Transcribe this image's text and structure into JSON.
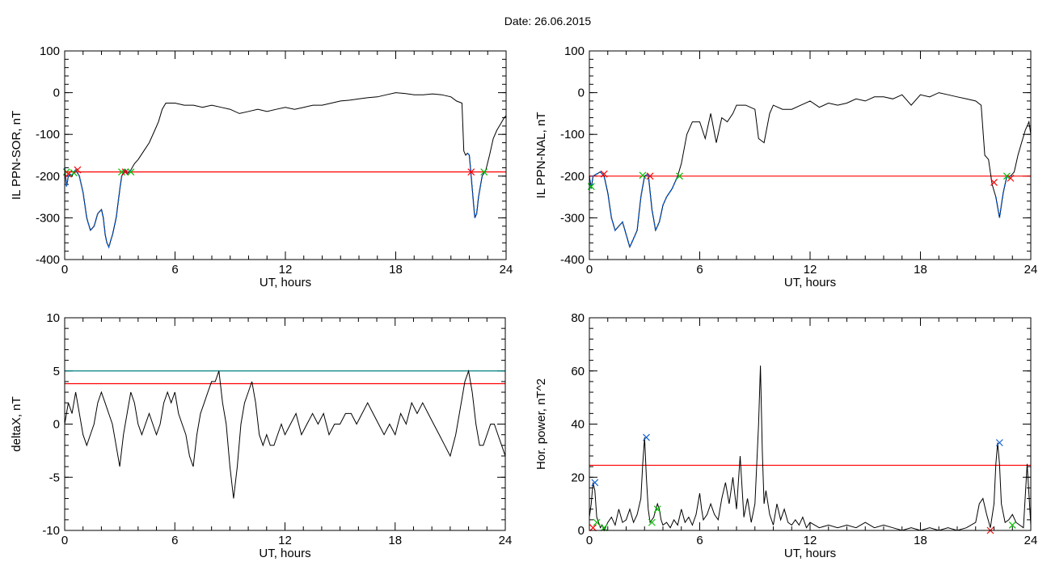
{
  "title": "Date:  26.06.2015",
  "colors": {
    "trace": "#000000",
    "threshold": "#ff0000",
    "threshold2": "#008080",
    "segment": "#1060d0",
    "marker_start": "#00c000",
    "marker_end": "#ff0000",
    "marker_peak": "#1060d0"
  },
  "chart_data": [
    {
      "type": "line",
      "id": "sor",
      "xlabel": "UT, hours",
      "ylabel": "IL PPN-SOR, nT",
      "xlim": [
        0,
        24
      ],
      "ylim": [
        -400,
        100
      ],
      "xticks": [
        0,
        6,
        12,
        18,
        24
      ],
      "yticks": [
        -400,
        -300,
        -200,
        -100,
        0,
        100
      ],
      "x": [
        0,
        0.1,
        0.2,
        0.3,
        0.4,
        0.5,
        0.6,
        0.8,
        1.0,
        1.2,
        1.4,
        1.6,
        1.8,
        2.0,
        2.1,
        2.2,
        2.3,
        2.4,
        2.6,
        2.8,
        3.0,
        3.1,
        3.2,
        3.3,
        3.4,
        3.6,
        3.8,
        4.0,
        4.3,
        4.6,
        4.9,
        5.1,
        5.3,
        5.5,
        6.0,
        6.5,
        7.0,
        7.5,
        8.0,
        8.5,
        9.0,
        9.5,
        10.0,
        10.5,
        11.0,
        11.5,
        12.0,
        12.5,
        13.0,
        13.5,
        14.0,
        14.5,
        15.0,
        15.5,
        16.0,
        16.5,
        17.0,
        17.5,
        18.0,
        18.5,
        19.0,
        19.5,
        20.0,
        20.5,
        21.0,
        21.3,
        21.6,
        21.7,
        21.8,
        21.9,
        22.0,
        22.1,
        22.2,
        22.3,
        22.4,
        22.5,
        22.7,
        22.9,
        23.1,
        23.3,
        23.5,
        23.7,
        23.9,
        24.0
      ],
      "series": [
        {
          "values": [
            -180,
            -225,
            -200,
            -195,
            -200,
            -190,
            -185,
            -200,
            -240,
            -300,
            -330,
            -320,
            -290,
            -280,
            -300,
            -340,
            -360,
            -370,
            -340,
            -300,
            -230,
            -200,
            -190,
            -185,
            -195,
            -185,
            -170,
            -160,
            -140,
            -120,
            -90,
            -70,
            -40,
            -25,
            -25,
            -30,
            -30,
            -35,
            -30,
            -35,
            -40,
            -50,
            -45,
            -40,
            -45,
            -40,
            -35,
            -40,
            -35,
            -30,
            -30,
            -25,
            -20,
            -18,
            -15,
            -12,
            -10,
            -5,
            0,
            -2,
            -5,
            -5,
            -3,
            -5,
            -10,
            -20,
            -25,
            -140,
            -150,
            -145,
            -150,
            -200,
            -250,
            -300,
            -290,
            -250,
            -200,
            -185,
            -150,
            -110,
            -90,
            -75,
            -60,
            -55
          ]
        }
      ],
      "thresholds": [
        {
          "y": -190,
          "color": "#ff0000"
        }
      ],
      "highlight_segments": [
        [
          0,
          3.6
        ],
        [
          21.9,
          22.9
        ]
      ],
      "markers": [
        {
          "x": 0.1,
          "y": -190,
          "color": "#00c000"
        },
        {
          "x": 0.2,
          "y": -195,
          "color": "#ff0000"
        },
        {
          "x": 0.5,
          "y": -192,
          "color": "#00c000"
        },
        {
          "x": 0.7,
          "y": -185,
          "color": "#ff0000"
        },
        {
          "x": 3.1,
          "y": -190,
          "color": "#00c000"
        },
        {
          "x": 3.3,
          "y": -190,
          "color": "#ff0000"
        },
        {
          "x": 3.6,
          "y": -190,
          "color": "#00c000"
        },
        {
          "x": 22.1,
          "y": -190,
          "color": "#ff0000"
        },
        {
          "x": 22.8,
          "y": -190,
          "color": "#00c000"
        }
      ]
    },
    {
      "type": "line",
      "id": "nal",
      "xlabel": "UT, hours",
      "ylabel": "IL PPN-NAL, nT",
      "xlim": [
        0,
        24
      ],
      "ylim": [
        -400,
        100
      ],
      "xticks": [
        0,
        6,
        12,
        18,
        24
      ],
      "yticks": [
        -400,
        -300,
        -200,
        -100,
        0,
        100
      ],
      "x": [
        0,
        0.1,
        0.2,
        0.4,
        0.6,
        0.8,
        1.0,
        1.2,
        1.4,
        1.6,
        1.8,
        2.0,
        2.2,
        2.4,
        2.6,
        2.8,
        3.0,
        3.2,
        3.4,
        3.6,
        3.8,
        4.0,
        4.2,
        4.5,
        4.8,
        5.0,
        5.3,
        5.6,
        6.0,
        6.3,
        6.6,
        6.9,
        7.2,
        7.5,
        7.8,
        8.0,
        8.5,
        9.0,
        9.2,
        9.5,
        9.8,
        10.0,
        10.5,
        11.0,
        11.5,
        12.0,
        12.5,
        13.0,
        13.5,
        14.0,
        14.5,
        15.0,
        15.5,
        16.0,
        16.5,
        17.0,
        17.5,
        18.0,
        18.5,
        19.0,
        19.5,
        20.0,
        20.5,
        21.0,
        21.3,
        21.5,
        21.7,
        21.9,
        22.1,
        22.3,
        22.5,
        22.7,
        22.9,
        23.1,
        23.3,
        23.5,
        23.7,
        23.9,
        24.0
      ],
      "series": [
        {
          "values": [
            -200,
            -230,
            -200,
            -195,
            -190,
            -200,
            -240,
            -300,
            -330,
            -320,
            -310,
            -340,
            -370,
            -350,
            -330,
            -250,
            -200,
            -195,
            -280,
            -330,
            -310,
            -270,
            -250,
            -230,
            -200,
            -170,
            -100,
            -70,
            -70,
            -110,
            -50,
            -120,
            -60,
            -70,
            -50,
            -30,
            -30,
            -40,
            -110,
            -120,
            -50,
            -30,
            -40,
            -40,
            -30,
            -20,
            -35,
            -25,
            -30,
            -25,
            -15,
            -20,
            -10,
            -10,
            -15,
            -5,
            -30,
            -5,
            -10,
            0,
            -5,
            -10,
            -15,
            -20,
            -30,
            -150,
            -160,
            -220,
            -250,
            -300,
            -240,
            -200,
            -200,
            -190,
            -150,
            -120,
            -90,
            -70,
            -100
          ]
        }
      ],
      "thresholds": [
        {
          "y": -200,
          "color": "#ff0000"
        }
      ],
      "highlight_segments": [
        [
          0,
          4.8
        ],
        [
          22.1,
          23.0
        ]
      ],
      "markers": [
        {
          "x": 0.1,
          "y": -225,
          "color": "#00c000"
        },
        {
          "x": 0.8,
          "y": -195,
          "color": "#ff0000"
        },
        {
          "x": 2.9,
          "y": -198,
          "color": "#00c000"
        },
        {
          "x": 3.3,
          "y": -200,
          "color": "#ff0000"
        },
        {
          "x": 4.9,
          "y": -200,
          "color": "#00c000"
        },
        {
          "x": 22.0,
          "y": -215,
          "color": "#ff0000"
        },
        {
          "x": 22.7,
          "y": -200,
          "color": "#00c000"
        },
        {
          "x": 22.9,
          "y": -205,
          "color": "#ff0000"
        }
      ]
    },
    {
      "type": "line",
      "id": "deltax",
      "xlabel": "UT, hours",
      "ylabel": "deltaX, nT",
      "xlim": [
        0,
        24
      ],
      "ylim": [
        -10,
        10
      ],
      "xticks": [
        0,
        6,
        12,
        18,
        24
      ],
      "yticks": [
        -10,
        -5,
        0,
        5,
        10
      ],
      "x": [
        0,
        0.2,
        0.4,
        0.6,
        0.8,
        1.0,
        1.2,
        1.4,
        1.6,
        1.8,
        2.0,
        2.2,
        2.4,
        2.6,
        2.8,
        3.0,
        3.2,
        3.4,
        3.6,
        3.8,
        4.0,
        4.2,
        4.4,
        4.6,
        4.8,
        5.0,
        5.2,
        5.4,
        5.6,
        5.8,
        6.0,
        6.2,
        6.4,
        6.6,
        6.8,
        7.0,
        7.2,
        7.4,
        7.6,
        7.8,
        8.0,
        8.2,
        8.4,
        8.6,
        8.8,
        9.0,
        9.2,
        9.4,
        9.6,
        9.8,
        10.0,
        10.2,
        10.4,
        10.6,
        10.8,
        11.0,
        11.2,
        11.4,
        11.6,
        11.8,
        12.0,
        12.3,
        12.6,
        12.9,
        13.2,
        13.5,
        13.8,
        14.1,
        14.4,
        14.7,
        15.0,
        15.3,
        15.6,
        15.9,
        16.2,
        16.5,
        16.8,
        17.1,
        17.4,
        17.7,
        18.0,
        18.3,
        18.6,
        18.9,
        19.2,
        19.5,
        19.8,
        20.1,
        20.4,
        20.7,
        21.0,
        21.3,
        21.6,
        21.8,
        22.0,
        22.2,
        22.4,
        22.6,
        22.8,
        23.0,
        23.2,
        23.4,
        23.6,
        23.8,
        24.0
      ],
      "series": [
        {
          "values": [
            0,
            2,
            1,
            3,
            1,
            -1,
            -2,
            -1,
            0,
            2,
            3,
            2,
            1,
            0,
            -2,
            -4,
            -1,
            1,
            3,
            2,
            0,
            -1,
            0,
            1,
            0,
            -1,
            0,
            2,
            3,
            2,
            3,
            1,
            0,
            -1,
            -3,
            -4,
            -1,
            1,
            2,
            3,
            4,
            4,
            5,
            2,
            0,
            -4,
            -7,
            -4,
            0,
            2,
            3,
            4,
            2,
            -1,
            -2,
            -1,
            -2,
            -2,
            -1,
            0,
            -1,
            0,
            1,
            -1,
            0,
            1,
            0,
            1,
            -1,
            0,
            0,
            1,
            1,
            0,
            1,
            2,
            1,
            0,
            -1,
            0,
            -1,
            1,
            0,
            2,
            1,
            2,
            1,
            0,
            -1,
            -2,
            -3,
            -1,
            2,
            4,
            5,
            3,
            0,
            -2,
            -2,
            -1,
            0,
            0,
            -1,
            -2,
            -3
          ]
        }
      ],
      "thresholds": [
        {
          "y": 3.8,
          "color": "#ff0000"
        },
        {
          "y": 5.0,
          "color": "#008080"
        }
      ],
      "highlight_segments": [],
      "markers": []
    },
    {
      "type": "line",
      "id": "power",
      "xlabel": "UT, hours",
      "ylabel": "Hor. power, nT^2",
      "xlim": [
        0,
        24
      ],
      "ylim": [
        0,
        80
      ],
      "xticks": [
        0,
        6,
        12,
        18,
        24
      ],
      "yticks": [
        0,
        20,
        40,
        60,
        80
      ],
      "x": [
        0,
        0.1,
        0.2,
        0.3,
        0.4,
        0.5,
        0.6,
        0.7,
        0.8,
        1.0,
        1.2,
        1.4,
        1.6,
        1.8,
        2.0,
        2.2,
        2.4,
        2.6,
        2.8,
        2.9,
        3.0,
        3.1,
        3.2,
        3.3,
        3.5,
        3.7,
        3.8,
        3.9,
        4.0,
        4.2,
        4.4,
        4.6,
        4.8,
        5.0,
        5.2,
        5.4,
        5.6,
        5.8,
        6.0,
        6.1,
        6.2,
        6.4,
        6.6,
        6.8,
        7.0,
        7.2,
        7.4,
        7.6,
        7.8,
        8.0,
        8.2,
        8.4,
        8.6,
        8.8,
        9.0,
        9.2,
        9.3,
        9.4,
        9.5,
        9.6,
        9.8,
        10.0,
        10.2,
        10.4,
        10.6,
        10.8,
        11.0,
        11.2,
        11.4,
        11.6,
        11.8,
        12.0,
        12.5,
        13.0,
        13.5,
        14.0,
        14.5,
        15.0,
        15.5,
        16.0,
        16.5,
        17.0,
        17.5,
        18.0,
        18.5,
        19.0,
        19.5,
        20.0,
        20.5,
        21.0,
        21.2,
        21.4,
        21.6,
        21.8,
        22.0,
        22.1,
        22.2,
        22.3,
        22.4,
        22.6,
        22.8,
        23.0,
        23.2,
        23.4,
        23.6,
        23.8,
        24.0
      ],
      "series": [
        {
          "values": [
            5,
            10,
            18,
            15,
            5,
            3,
            1,
            2,
            0,
            3,
            5,
            2,
            8,
            3,
            4,
            8,
            3,
            6,
            12,
            25,
            35,
            20,
            8,
            3,
            5,
            10,
            8,
            4,
            2,
            3,
            1,
            4,
            2,
            8,
            3,
            5,
            2,
            6,
            14,
            8,
            4,
            6,
            10,
            6,
            4,
            12,
            18,
            10,
            20,
            8,
            28,
            5,
            12,
            3,
            10,
            40,
            62,
            30,
            10,
            15,
            6,
            2,
            10,
            4,
            8,
            3,
            2,
            4,
            2,
            5,
            1,
            3,
            1,
            2,
            1,
            2,
            1,
            3,
            1,
            2,
            1,
            0,
            1,
            0,
            1,
            0,
            1,
            0,
            1,
            3,
            10,
            12,
            6,
            1,
            10,
            25,
            33,
            25,
            10,
            3,
            4,
            6,
            3,
            2,
            1,
            25,
            2
          ]
        }
      ],
      "thresholds": [
        {
          "y": 24.5,
          "color": "#ff0000"
        }
      ],
      "highlight_segments": [],
      "markers": [
        {
          "x": 0.3,
          "y": 18,
          "color": "#1060d0"
        },
        {
          "x": 0.4,
          "y": 3,
          "color": "#00c000"
        },
        {
          "x": 0.2,
          "y": 1,
          "color": "#ff0000"
        },
        {
          "x": 0.8,
          "y": 1,
          "color": "#00c000"
        },
        {
          "x": 3.1,
          "y": 35,
          "color": "#1060d0"
        },
        {
          "x": 3.4,
          "y": 3,
          "color": "#00c000"
        },
        {
          "x": 3.7,
          "y": 8,
          "color": "#00c000"
        },
        {
          "x": 22.3,
          "y": 33,
          "color": "#1060d0"
        },
        {
          "x": 21.8,
          "y": 0,
          "color": "#ff0000"
        },
        {
          "x": 23.0,
          "y": 2,
          "color": "#00c000"
        }
      ]
    }
  ]
}
